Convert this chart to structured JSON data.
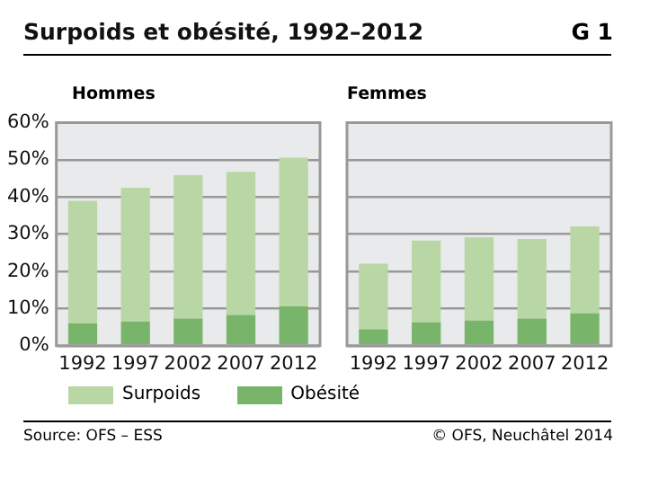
{
  "chart_data": [
    {
      "type": "bar",
      "title": "Surpoids et obésité, 1992–2012",
      "subtitle": "Hommes",
      "annotations": [
        "G 1",
        "Source: OFS – ESS",
        "© OFS, Neuchâtel 2014"
      ],
      "categories": [
        "1992",
        "1997",
        "2002",
        "2007",
        "2012"
      ],
      "stacked": true,
      "series": [
        {
          "name": "Obésité",
          "color": "#78b56a",
          "values": [
            6.0,
            6.5,
            7.3,
            8.3,
            10.6
          ]
        },
        {
          "name": "Surpoids",
          "color": "#b9d7a5",
          "values": [
            33.0,
            36.0,
            38.6,
            38.5,
            40.0
          ]
        }
      ],
      "ylim": [
        0,
        60
      ],
      "yticks": [
        {
          "value": 0,
          "label": "0%"
        },
        {
          "value": 10,
          "label": "10%"
        },
        {
          "value": 20,
          "label": "20%"
        },
        {
          "value": 30,
          "label": "30%"
        },
        {
          "value": 40,
          "label": "40%"
        },
        {
          "value": 50,
          "label": "50%"
        },
        {
          "value": 60,
          "label": "60%"
        }
      ],
      "grid": "y",
      "legend": "bottom"
    },
    {
      "type": "bar",
      "title": "Femmes",
      "categories": [
        "1992",
        "1997",
        "2002",
        "2007",
        "2012"
      ],
      "stacked": true,
      "series": [
        {
          "color": "#78b56a",
          "values": [
            4.4,
            6.3,
            6.8,
            7.3,
            8.7
          ]
        },
        {
          "color": "#b9d7a5",
          "values": [
            17.7,
            22.0,
            22.4,
            21.4,
            23.4
          ]
        }
      ],
      "ylim": [
        0,
        60
      ],
      "yticks": [
        {
          "value": 0,
          "label": null
        },
        {
          "value": 10,
          "label": null
        },
        {
          "value": 20,
          "label": null
        },
        {
          "value": 30,
          "label": null
        },
        {
          "value": 40,
          "label": null
        },
        {
          "value": 50,
          "label": null
        },
        {
          "value": 60,
          "label": null
        }
      ],
      "grid": "y",
      "tick_labels": "x"
    }
  ]
}
